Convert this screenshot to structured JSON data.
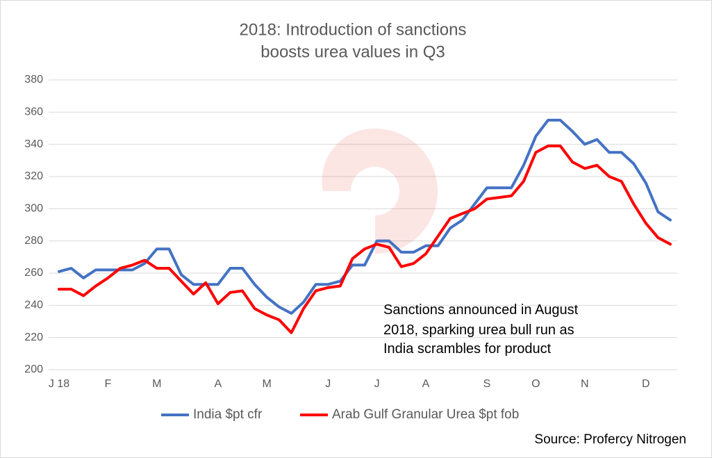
{
  "chart_data": {
    "type": "line",
    "title": [
      "2018: Introduction of sanctions",
      "boosts urea values in Q3"
    ],
    "categories": [
      "J 18",
      null,
      null,
      null,
      "F",
      null,
      null,
      null,
      "M",
      null,
      null,
      null,
      null,
      "A",
      null,
      null,
      null,
      "M",
      null,
      null,
      null,
      null,
      "J",
      null,
      null,
      null,
      "J",
      null,
      null,
      null,
      "A",
      null,
      null,
      null,
      null,
      "S",
      null,
      null,
      null,
      "O",
      null,
      null,
      null,
      "N",
      null,
      null,
      null,
      null,
      "D",
      null,
      null
    ],
    "series": [
      {
        "name": "India $pt cfr",
        "color": "#4472c4",
        "values": [
          261,
          263,
          257,
          262,
          262,
          262,
          262,
          266,
          275,
          275,
          259,
          253,
          253,
          253,
          263,
          263,
          253,
          245,
          239,
          235,
          242,
          253,
          253,
          255,
          265,
          265,
          280,
          280,
          273,
          273,
          277,
          277,
          288,
          293,
          303,
          313,
          313,
          313,
          327,
          345,
          355,
          355,
          348,
          340,
          343,
          335,
          335,
          328,
          316,
          298,
          293
        ]
      },
      {
        "name": "Arab Gulf Granular Urea $pt fob",
        "color": "#ff0000",
        "values": [
          250,
          250,
          246,
          252,
          257,
          263,
          265,
          268,
          263,
          263,
          255,
          247,
          254,
          241,
          248,
          249,
          238,
          234,
          231,
          223,
          238,
          249,
          251,
          252,
          269,
          275,
          278,
          276,
          264,
          266,
          272,
          283,
          294,
          297,
          300,
          306,
          307,
          308,
          317,
          335,
          339,
          339,
          329,
          325,
          327,
          320,
          317,
          303,
          291,
          282,
          278
        ]
      }
    ],
    "ylim": [
      200,
      380
    ],
    "yticks": [
      200,
      220,
      240,
      260,
      280,
      300,
      320,
      340,
      360,
      380
    ],
    "grid": true,
    "annotation": [
      "Sanctions announced in August",
      "2018, sparking urea bull run as",
      "India scrambles for product"
    ],
    "source": "Source: Profercy Nitrogen"
  }
}
